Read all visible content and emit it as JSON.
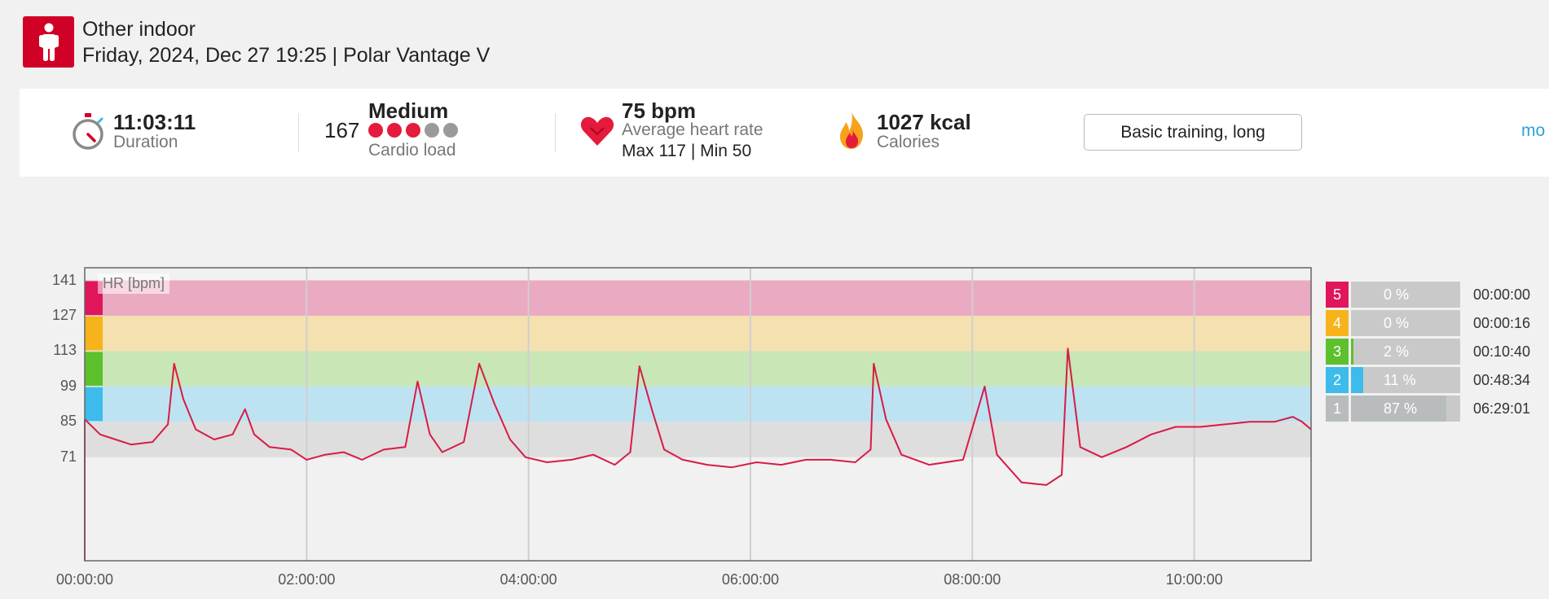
{
  "header": {
    "sport_icon": "person-standing-icon",
    "sport_name": "Other indoor",
    "subtitle": "Friday, 2024, Dec 27 19:25 | Polar Vantage V"
  },
  "summary": {
    "duration": {
      "value": "11:03:11",
      "label": "Duration",
      "icon": "stopwatch-icon"
    },
    "cardio": {
      "value": "167",
      "level": "Medium",
      "label": "Cardio load",
      "dots_filled": 3,
      "dots_total": 5
    },
    "heart": {
      "value": "75 bpm",
      "label": "Average heart rate",
      "detail": "Max 117  |  Min 50",
      "icon": "heart-icon"
    },
    "calories": {
      "value": "1027 kcal",
      "label": "Calories",
      "icon": "flame-icon"
    },
    "training_benefit": "Basic training, long",
    "more_link": "mo"
  },
  "colors": {
    "brand_red": "#d10027",
    "hr_line": "#d81b45",
    "zone5": "#e0155b",
    "zone4": "#f6b31b",
    "zone3": "#5dc02d",
    "zone2": "#3dbbea",
    "zone1": "#b9bcbc"
  },
  "chart_data": {
    "type": "line",
    "title": "",
    "ylabel": "HR [bpm]",
    "xlabel": "",
    "ylim": [
      30,
      146
    ],
    "xlim": [
      0,
      39791
    ],
    "y_ticks": [
      "141",
      "127",
      "113",
      "99",
      "85",
      "71"
    ],
    "x_ticks": [
      "00:00:00",
      "02:00:00",
      "04:00:00",
      "06:00:00",
      "08:00:00",
      "10:00:00"
    ],
    "zone_bands": [
      {
        "zone": "5",
        "from": 127,
        "to": 141
      },
      {
        "zone": "4",
        "from": 113,
        "to": 127
      },
      {
        "zone": "3",
        "from": 99,
        "to": 113
      },
      {
        "zone": "2",
        "from": 85,
        "to": 99
      },
      {
        "zone": "1",
        "from": 71,
        "to": 85
      }
    ],
    "series": [
      {
        "values": [
          [
            0,
            86
          ],
          [
            500,
            80
          ],
          [
            1000,
            78
          ],
          [
            1500,
            76
          ],
          [
            2200,
            77
          ],
          [
            2700,
            84
          ],
          [
            2900,
            108
          ],
          [
            3200,
            94
          ],
          [
            3600,
            82
          ],
          [
            4200,
            78
          ],
          [
            4800,
            80
          ],
          [
            5200,
            90
          ],
          [
            5500,
            80
          ],
          [
            6000,
            75
          ],
          [
            6700,
            74
          ],
          [
            7200,
            70
          ],
          [
            7800,
            72
          ],
          [
            8400,
            73
          ],
          [
            9000,
            70
          ],
          [
            9700,
            74
          ],
          [
            10400,
            75
          ],
          [
            10800,
            101
          ],
          [
            11200,
            80
          ],
          [
            11600,
            73
          ],
          [
            12300,
            77
          ],
          [
            12800,
            108
          ],
          [
            13300,
            92
          ],
          [
            13800,
            78
          ],
          [
            14300,
            71
          ],
          [
            15000,
            69
          ],
          [
            15800,
            70
          ],
          [
            16500,
            72
          ],
          [
            17200,
            68
          ],
          [
            17700,
            73
          ],
          [
            18000,
            107
          ],
          [
            18400,
            90
          ],
          [
            18800,
            74
          ],
          [
            19400,
            70
          ],
          [
            20200,
            68
          ],
          [
            21000,
            67
          ],
          [
            21800,
            69
          ],
          [
            22600,
            68
          ],
          [
            23400,
            70
          ],
          [
            24200,
            70
          ],
          [
            25000,
            69
          ],
          [
            25500,
            74
          ],
          [
            25600,
            108
          ],
          [
            26000,
            86
          ],
          [
            26500,
            72
          ],
          [
            27400,
            68
          ],
          [
            28500,
            70
          ],
          [
            29200,
            99
          ],
          [
            29600,
            72
          ],
          [
            30400,
            61
          ],
          [
            31200,
            60
          ],
          [
            31700,
            64
          ],
          [
            31900,
            114
          ],
          [
            32300,
            75
          ],
          [
            33000,
            71
          ],
          [
            33800,
            75
          ],
          [
            34600,
            80
          ],
          [
            35400,
            83
          ],
          [
            36200,
            83
          ],
          [
            37000,
            84
          ],
          [
            37800,
            85
          ],
          [
            38600,
            85
          ],
          [
            39200,
            87
          ],
          [
            39500,
            85
          ],
          [
            39791,
            82
          ]
        ]
      }
    ]
  },
  "zones": [
    {
      "num": "5",
      "pct": "0 %",
      "fraction": 0.0,
      "time": "00:00:00"
    },
    {
      "num": "4",
      "pct": "0 %",
      "fraction": 0.0,
      "time": "00:00:16"
    },
    {
      "num": "3",
      "pct": "2 %",
      "fraction": 0.02,
      "time": "00:10:40"
    },
    {
      "num": "2",
      "pct": "11 %",
      "fraction": 0.11,
      "time": "00:48:34"
    },
    {
      "num": "1",
      "pct": "87 %",
      "fraction": 0.87,
      "time": "06:29:01"
    }
  ]
}
